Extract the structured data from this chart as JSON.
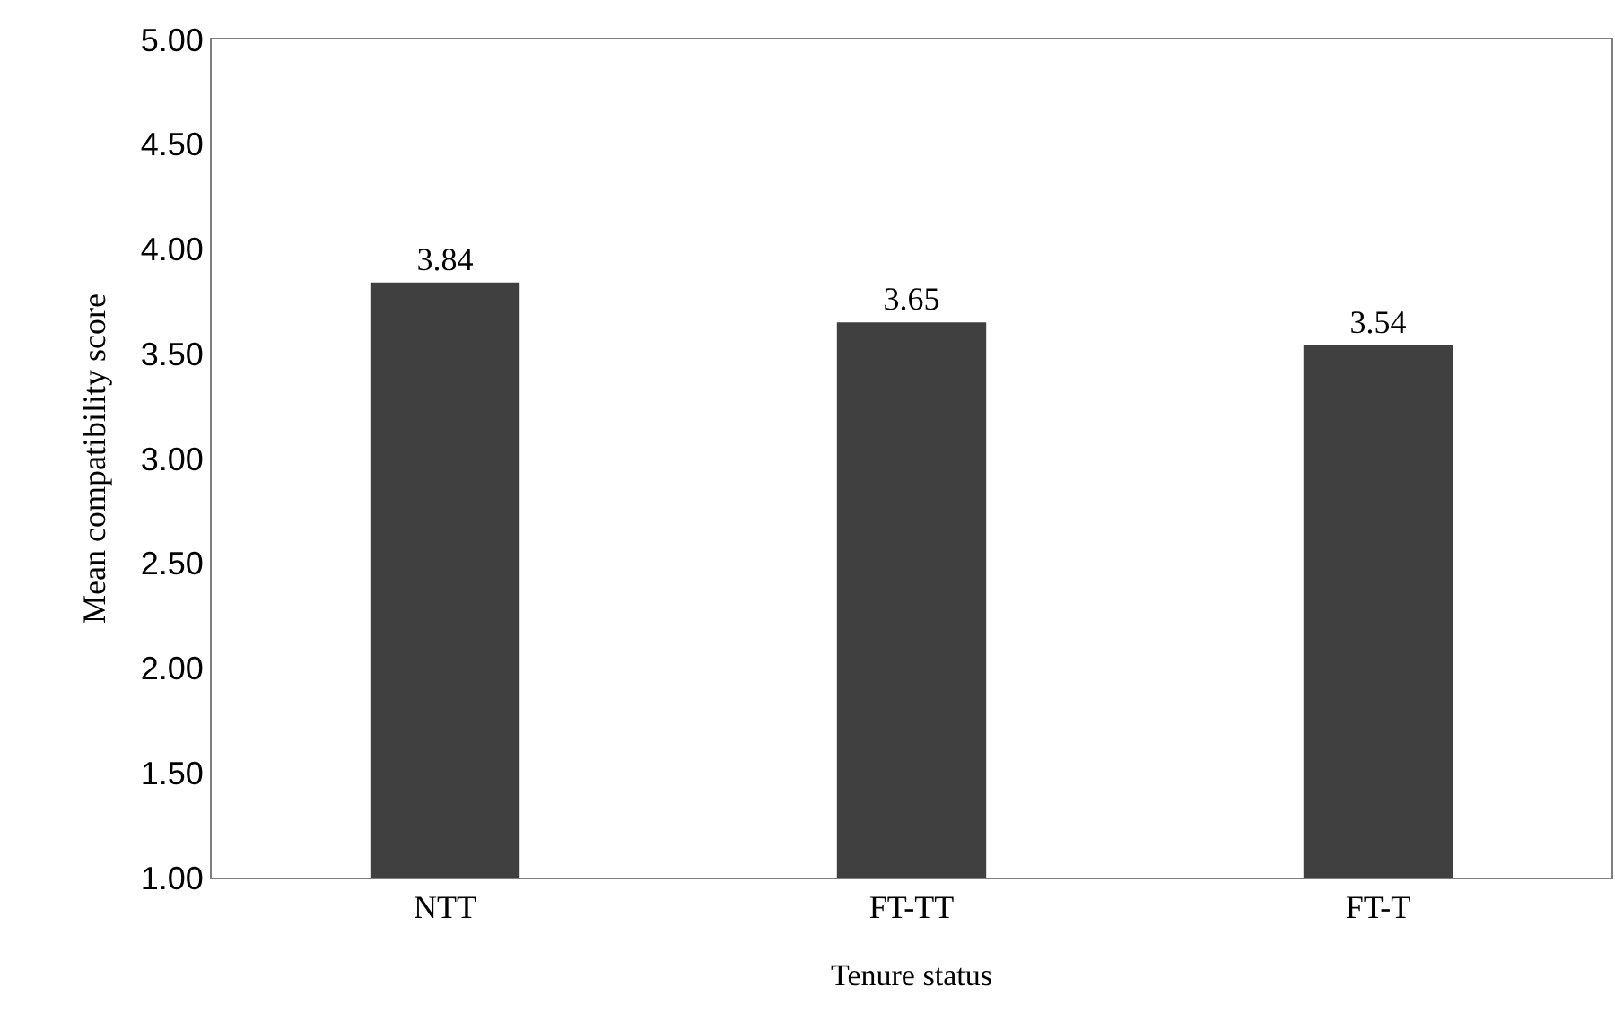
{
  "chart_data": {
    "type": "bar",
    "xlabel": "Tenure status",
    "ylabel": "Mean compatibility score",
    "categories": [
      "NTT",
      "FT-TT",
      "FT-T"
    ],
    "values": [
      3.84,
      3.65,
      3.54
    ],
    "color": "#404040",
    "ylim": [
      1,
      5
    ],
    "yticks": [
      {
        "value": 1,
        "label": "1.00"
      },
      {
        "value": 1.5,
        "label": "1.50"
      },
      {
        "value": 2,
        "label": "2.00"
      },
      {
        "value": 2.5,
        "label": "2.50"
      },
      {
        "value": 3,
        "label": "3.00"
      },
      {
        "value": 3.5,
        "label": "3.50"
      },
      {
        "value": 4,
        "label": "4.00"
      },
      {
        "value": 4.5,
        "label": "4.50"
      },
      {
        "value": 5,
        "label": "5.00"
      }
    ],
    "data_labels": true
  }
}
